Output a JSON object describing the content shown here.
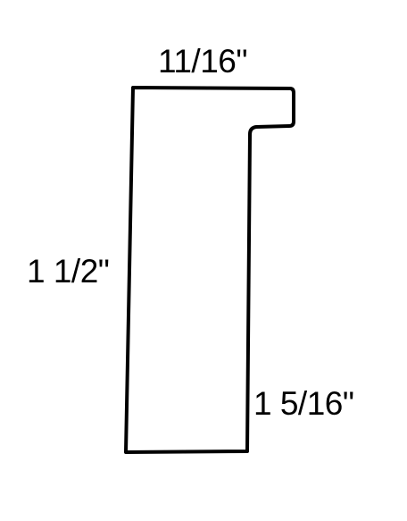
{
  "dimensions": {
    "top_width": "11/16\"",
    "left_height": "1 1/2\"",
    "right_height": "1 5/16\""
  },
  "colors": {
    "stroke": "#000000",
    "background": "#ffffff"
  }
}
